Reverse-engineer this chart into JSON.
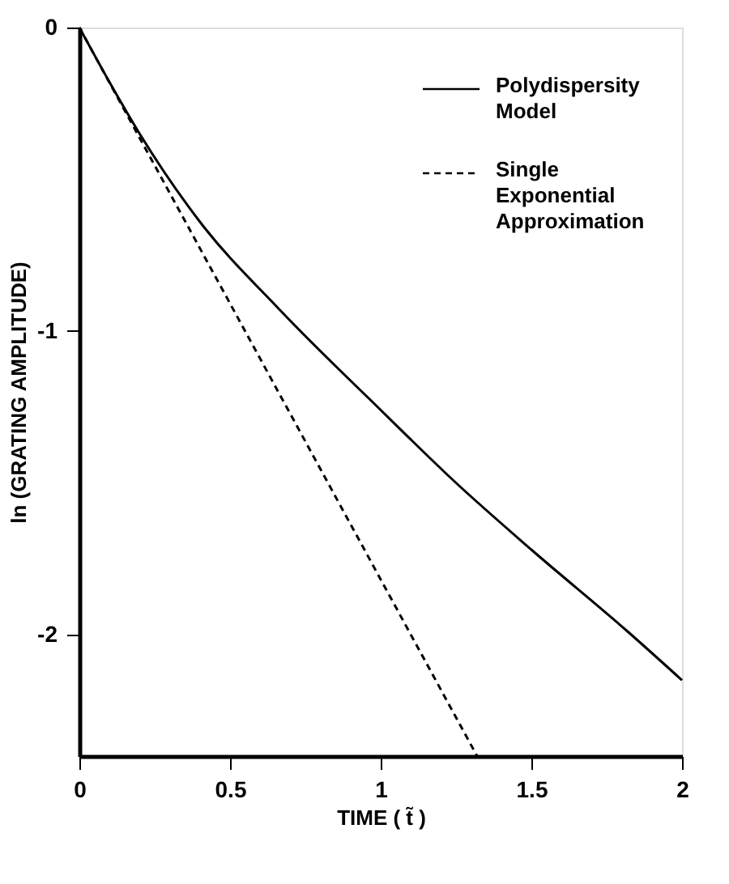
{
  "chart_data": {
    "type": "line",
    "xlabel": "TIME ( t̃ )",
    "ylabel": "ln (GRATING AMPLITUDE)",
    "xlim": [
      0,
      2
    ],
    "xticks": [
      0,
      0.5,
      1,
      1.5,
      2
    ],
    "ylim": [
      -2.4,
      0
    ],
    "yticks": [
      -2,
      -1,
      0
    ],
    "grid": false,
    "legend": "top right",
    "marker": "none",
    "series": [
      {
        "name": "Polydispersity Model",
        "color": "#000000",
        "line_style": "solid",
        "x": [
          0,
          0.1,
          0.2,
          0.4,
          0.665,
          1.0,
          1.25,
          1.5,
          1.82,
          2.0
        ],
        "values": [
          0,
          -0.18,
          -0.35,
          -0.64,
          -0.93,
          -1.26,
          -1.5,
          -1.72,
          -1.99,
          -2.15
        ]
      },
      {
        "name": "Single Exponential Approximation",
        "color": "#000000",
        "line_style": "dashed",
        "x": [
          0,
          1.32
        ],
        "values": [
          0,
          -2.4
        ]
      }
    ]
  }
}
